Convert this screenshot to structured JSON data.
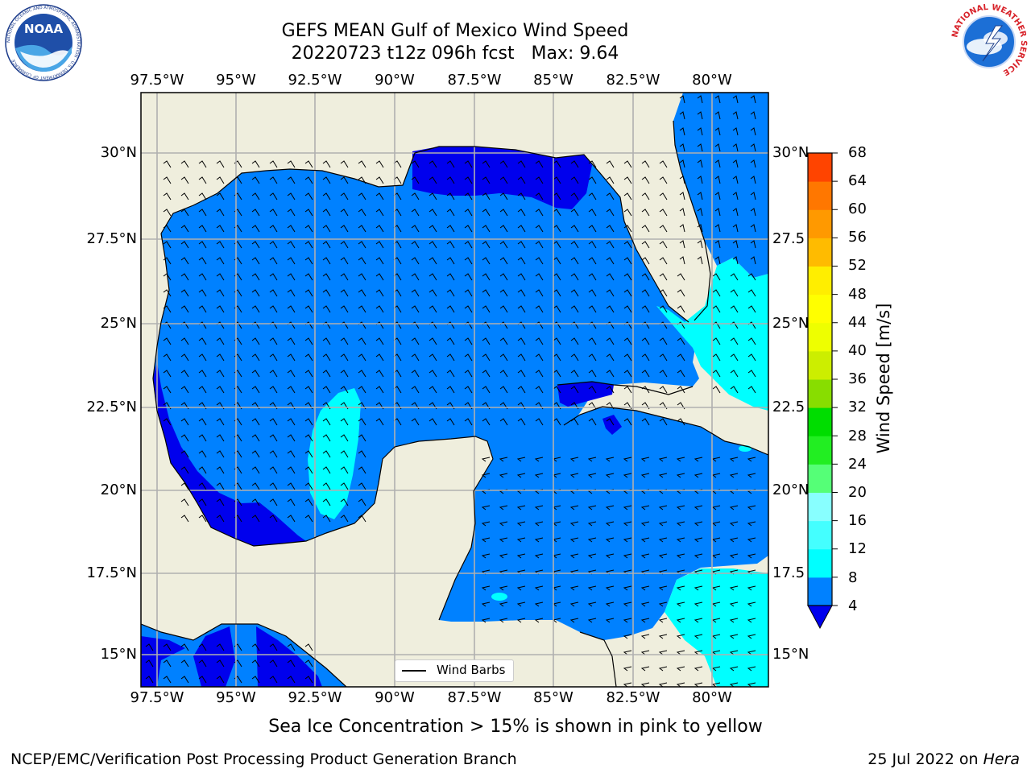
{
  "title": {
    "line1": "GEFS MEAN Gulf of Mexico Wind Speed",
    "line2": "20220723 t12z 096h fcst   Max: 9.64"
  },
  "logos": {
    "left": {
      "text": "NOAA",
      "ring": "NATIONAL OCEANIC AND ATMOSPHERIC ADMINISTRATION · U.S. DEPARTMENT OF COMMERCE"
    },
    "right": {
      "ring": "NATIONAL WEATHER SERVICE"
    }
  },
  "map": {
    "lon_ticks": [
      "97.5°W",
      "95°W",
      "92.5°W",
      "90°W",
      "87.5°W",
      "85°W",
      "82.5°W",
      "80°W"
    ],
    "lat_ticks_left": [
      "30°N",
      "27.5°N",
      "25°N",
      "22.5°N",
      "20°N",
      "17.5°N",
      "15°N"
    ],
    "lat_ticks_right": [
      "30°N",
      "27.5",
      "25°N",
      "22.5",
      "20°N",
      "17.5",
      "15°N"
    ],
    "colors": {
      "land": "#efeedd",
      "ocean_4_8": "#0081ff",
      "ocean_0_4": "#0000ed",
      "ocean_8_12": "#00ffff",
      "grid": "#b0b0b0"
    },
    "legend_label": "Wind Barbs"
  },
  "colorbar": {
    "label": "Wind Speed [m/s]",
    "ticks": [
      "68",
      "64",
      "60",
      "56",
      "52",
      "48",
      "44",
      "40",
      "36",
      "32",
      "28",
      "24",
      "20",
      "16",
      "12",
      "8",
      "4"
    ],
    "colors_bottom_to_top": [
      "#0081ff",
      "#00ffff",
      "#44ffff",
      "#88ffff",
      "#55ff77",
      "#22ee22",
      "#00dd00",
      "#88dd00",
      "#ccee00",
      "#eeff00",
      "#ffff00",
      "#ffee00",
      "#ffbb00",
      "#ff9900",
      "#ff7700",
      "#ff4400",
      "#ff2200",
      "#ff0000"
    ],
    "under_color": "#0000ed"
  },
  "note": "Sea Ice Concentration > 15% is shown in pink to yellow",
  "footer": {
    "left": "NCEP/EMC/Verification Post Processing Product Generation Branch",
    "right_prefix": "25 Jul 2022 on ",
    "right_host": "Hera"
  }
}
